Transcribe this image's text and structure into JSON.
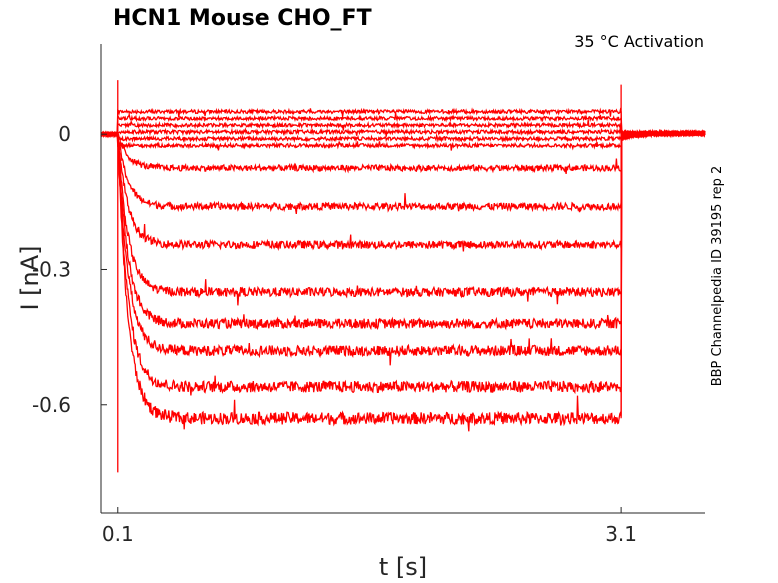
{
  "chart_data": {
    "type": "line",
    "title": "HCN1  Mouse  CHO_FT",
    "annotation": "35 °C  Activation",
    "side_label": "BBP Channelpedia ID 39195 rep 2",
    "xlabel": "t [s]",
    "ylabel": "I [nA]",
    "xlim": [
      0.0,
      3.6
    ],
    "ylim": [
      -0.84,
      0.2
    ],
    "x_ticks": [
      0.1,
      3.1
    ],
    "x_tick_labels": [
      "0.1",
      "3.1"
    ],
    "y_ticks": [
      0,
      -0.3,
      -0.6
    ],
    "y_tick_labels": [
      "0",
      "-0.3",
      "-0.6"
    ],
    "stimulus_on": 0.1,
    "stimulus_off": 3.1,
    "grid": false,
    "color": "#ff0000",
    "series": [
      {
        "steady": 0.05
      },
      {
        "steady": 0.035
      },
      {
        "steady": 0.02
      },
      {
        "steady": 0.005
      },
      {
        "steady": -0.01
      },
      {
        "steady": -0.025
      },
      {
        "steady": -0.075
      },
      {
        "steady": -0.16
      },
      {
        "steady": -0.245
      },
      {
        "steady": -0.35
      },
      {
        "steady": -0.42
      },
      {
        "steady": -0.48
      },
      {
        "steady": -0.56
      },
      {
        "steady": -0.63
      }
    ]
  }
}
